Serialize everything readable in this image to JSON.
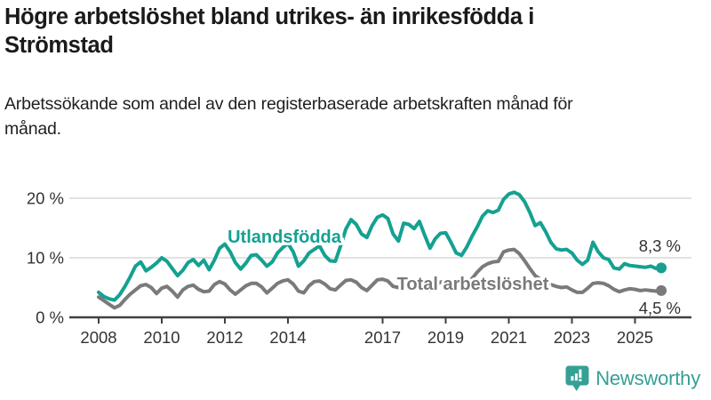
{
  "header": {
    "title": "Högre arbetslöshet bland utrikes- än inrikesfödda i Strömstad",
    "subtitle": "Arbetssökande som andel av den registerbaserade arbetskraften månad för månad."
  },
  "footer": {
    "logo_text": "Newsworthy"
  },
  "colors": {
    "utlandsfodda_teal": "#14a191",
    "total_gray": "#7a7a7a",
    "gridline": "#d8d8d8",
    "axis": "#404040",
    "axis_text": "#333333",
    "logo_teal": "#35a094",
    "background": "#ffffff"
  },
  "chart_data": {
    "type": "line",
    "title": "Högre arbetslöshet bland utrikes- än inrikesfödda i Strömstad",
    "subtitle": "Arbetssökande som andel av den registerbaserade arbetskraften månad för månad.",
    "unit": "%",
    "grid": "horizontal-only",
    "legend_position": "inline-labels",
    "x_start": 2008.0,
    "x_step_years": 0.1666667,
    "xlim": [
      2007.1,
      2026.5
    ],
    "ylim": [
      0,
      22
    ],
    "x_tick_values": [
      2008,
      2010,
      2012,
      2014,
      2017,
      2019,
      2021,
      2023,
      2025
    ],
    "x_tick_labels": [
      "2008",
      "2010",
      "2012",
      "2014",
      "2017",
      "2019",
      "2021",
      "2023",
      "2025"
    ],
    "y_tick_values": [
      0,
      10,
      20
    ],
    "y_tick_labels": [
      "0 %",
      "10 %",
      "20 %"
    ],
    "series": [
      {
        "name": "Utlandsfödda",
        "color": "#14a191",
        "end_label": "8,3 %",
        "end_value": 8.3,
        "values": [
          4.2,
          3.5,
          3.1,
          2.9,
          3.8,
          5.2,
          6.8,
          8.6,
          9.3,
          7.8,
          8.4,
          9.1,
          10.0,
          9.4,
          8.2,
          7.0,
          7.9,
          9.2,
          9.7,
          8.7,
          9.6,
          8.0,
          9.6,
          11.6,
          12.3,
          11.0,
          9.2,
          8.1,
          9.1,
          10.4,
          10.5,
          9.6,
          8.6,
          9.3,
          10.8,
          11.7,
          12.4,
          11.0,
          8.6,
          9.5,
          10.8,
          11.4,
          12.0,
          10.4,
          9.5,
          9.4,
          12.0,
          14.8,
          16.4,
          15.6,
          14.0,
          13.4,
          15.4,
          16.8,
          17.2,
          16.6,
          14.0,
          12.8,
          15.8,
          15.6,
          14.9,
          16.1,
          13.8,
          11.6,
          13.2,
          14.1,
          14.2,
          12.6,
          10.8,
          10.4,
          11.8,
          13.6,
          15.2,
          17.0,
          17.9,
          17.6,
          18.0,
          19.8,
          20.7,
          21.0,
          20.6,
          19.4,
          17.6,
          15.4,
          15.9,
          14.4,
          12.6,
          11.5,
          11.3,
          11.4,
          10.8,
          9.6,
          8.9,
          9.6,
          12.6,
          11.0,
          10.0,
          9.7,
          8.3,
          8.1,
          9.0,
          8.7,
          8.6,
          8.5,
          8.4,
          8.6,
          8.2,
          8.3
        ]
      },
      {
        "name": "Total arbetslöshet",
        "color": "#7a7a7a",
        "end_label": "4,5 %",
        "end_value": 4.5,
        "values": [
          3.4,
          2.8,
          2.2,
          1.6,
          2.0,
          3.0,
          3.9,
          4.6,
          5.3,
          5.5,
          5.0,
          4.0,
          4.9,
          5.2,
          4.4,
          3.4,
          4.6,
          5.2,
          5.4,
          4.7,
          4.3,
          4.4,
          5.5,
          6.0,
          5.6,
          4.6,
          3.9,
          4.6,
          5.3,
          5.7,
          5.7,
          5.1,
          4.1,
          4.9,
          5.7,
          6.1,
          6.3,
          5.6,
          4.4,
          4.1,
          5.3,
          6.0,
          6.1,
          5.6,
          4.8,
          4.6,
          5.4,
          6.2,
          6.3,
          5.9,
          5.0,
          4.5,
          5.4,
          6.3,
          6.4,
          6.1,
          5.2,
          5.0,
          5.8,
          6.2,
          6.3,
          5.9,
          4.9,
          4.5,
          5.3,
          5.9,
          6.1,
          5.6,
          4.9,
          4.5,
          5.3,
          6.5,
          7.6,
          8.5,
          9.0,
          9.3,
          9.4,
          11.0,
          11.3,
          11.4,
          10.7,
          9.5,
          8.2,
          7.0,
          6.4,
          6.0,
          5.5,
          5.2,
          5.0,
          5.1,
          4.6,
          4.2,
          4.2,
          4.9,
          5.7,
          5.8,
          5.7,
          5.3,
          4.7,
          4.3,
          4.6,
          4.8,
          4.7,
          4.5,
          4.6,
          4.5,
          4.4,
          4.5
        ]
      }
    ]
  }
}
